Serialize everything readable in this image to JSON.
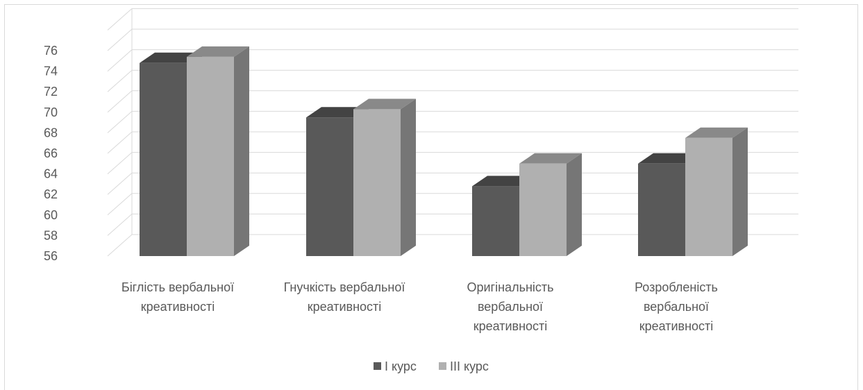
{
  "chart_data": {
    "type": "bar",
    "style": "3d-clustered-column",
    "categories": [
      [
        "Біглість вербальної",
        "креативності"
      ],
      [
        "Гнучкість вербальної",
        "креативності"
      ],
      [
        "Оригінальність",
        "вербальної",
        "креативності"
      ],
      [
        "Розробленість",
        "вербальної",
        "креативності"
      ]
    ],
    "series": [
      {
        "name": "I курс",
        "values": [
          74.8,
          69.5,
          62.8,
          65.0
        ],
        "color": "#595959"
      },
      {
        "name": "III курс",
        "values": [
          75.4,
          70.3,
          65.0,
          67.5
        ],
        "color": "#b0b0b0"
      }
    ],
    "ylim": [
      56,
      76
    ],
    "yticks": [
      56,
      58,
      60,
      62,
      64,
      66,
      68,
      70,
      72,
      74,
      76
    ],
    "grid": true,
    "legend": "bottom",
    "title": "",
    "xlabel": "",
    "ylabel": ""
  }
}
